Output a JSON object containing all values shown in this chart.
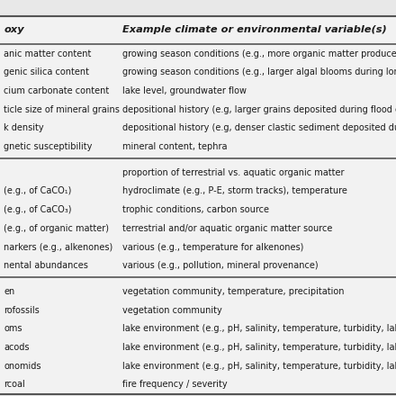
{
  "col1_header": "oxy",
  "col2_header": "Example climate or environmental variable(s)",
  "rows": [
    [
      "anic matter content",
      "growing season conditions (e.g., more organic matter produced d"
    ],
    [
      "genic silica content",
      "growing season conditions (e.g., larger algal blooms during longe"
    ],
    [
      "cium carbonate content",
      "lake level, groundwater flow"
    ],
    [
      "ticle size of mineral grains",
      "depositional history (e.g, larger grains deposited during flood eve"
    ],
    [
      "k density",
      "depositional history (e.g, denser clastic sediment deposited durin"
    ],
    [
      "gnetic susceptibility",
      "mineral content, tephra"
    ],
    [
      "",
      "proportion of terrestrial vs. aquatic organic matter"
    ],
    [
      "(e.g., of CaCO₁)",
      "hydroclimate (e.g., P-E, storm tracks), temperature"
    ],
    [
      "(e.g., of CaCO₃)",
      "trophic conditions, carbon source"
    ],
    [
      "(e.g., of organic matter)",
      "terrestrial and/or aquatic organic matter source"
    ],
    [
      "narkers (e.g., alkenones)",
      "various (e.g., temperature for alkenones)"
    ],
    [
      "nental abundances",
      "various (e.g., pollution, mineral provenance)"
    ],
    [
      "en",
      "vegetation community, temperature, precipitation"
    ],
    [
      "rofossils",
      "vegetation community"
    ],
    [
      "oms",
      "lake environment (e.g., pH, salinity, temperature, turbidity, lake lev"
    ],
    [
      "acods",
      "lake environment (e.g., pH, salinity, temperature, turbidity, lake lev"
    ],
    [
      "onomids",
      "lake environment (e.g., pH, salinity, temperature, turbidity, lake lev"
    ],
    [
      "rcoal",
      "fire frequency / severity"
    ]
  ],
  "dividers_after": [
    5,
    11
  ],
  "bg_color": "#e8e8e8",
  "table_bg": "#f0f0f0",
  "text_color": "#1a1a1a",
  "header_color": "#1a1a1a",
  "line_color": "#555555",
  "font_size": 7.0,
  "header_font_size": 8.2,
  "col_split": 0.3
}
